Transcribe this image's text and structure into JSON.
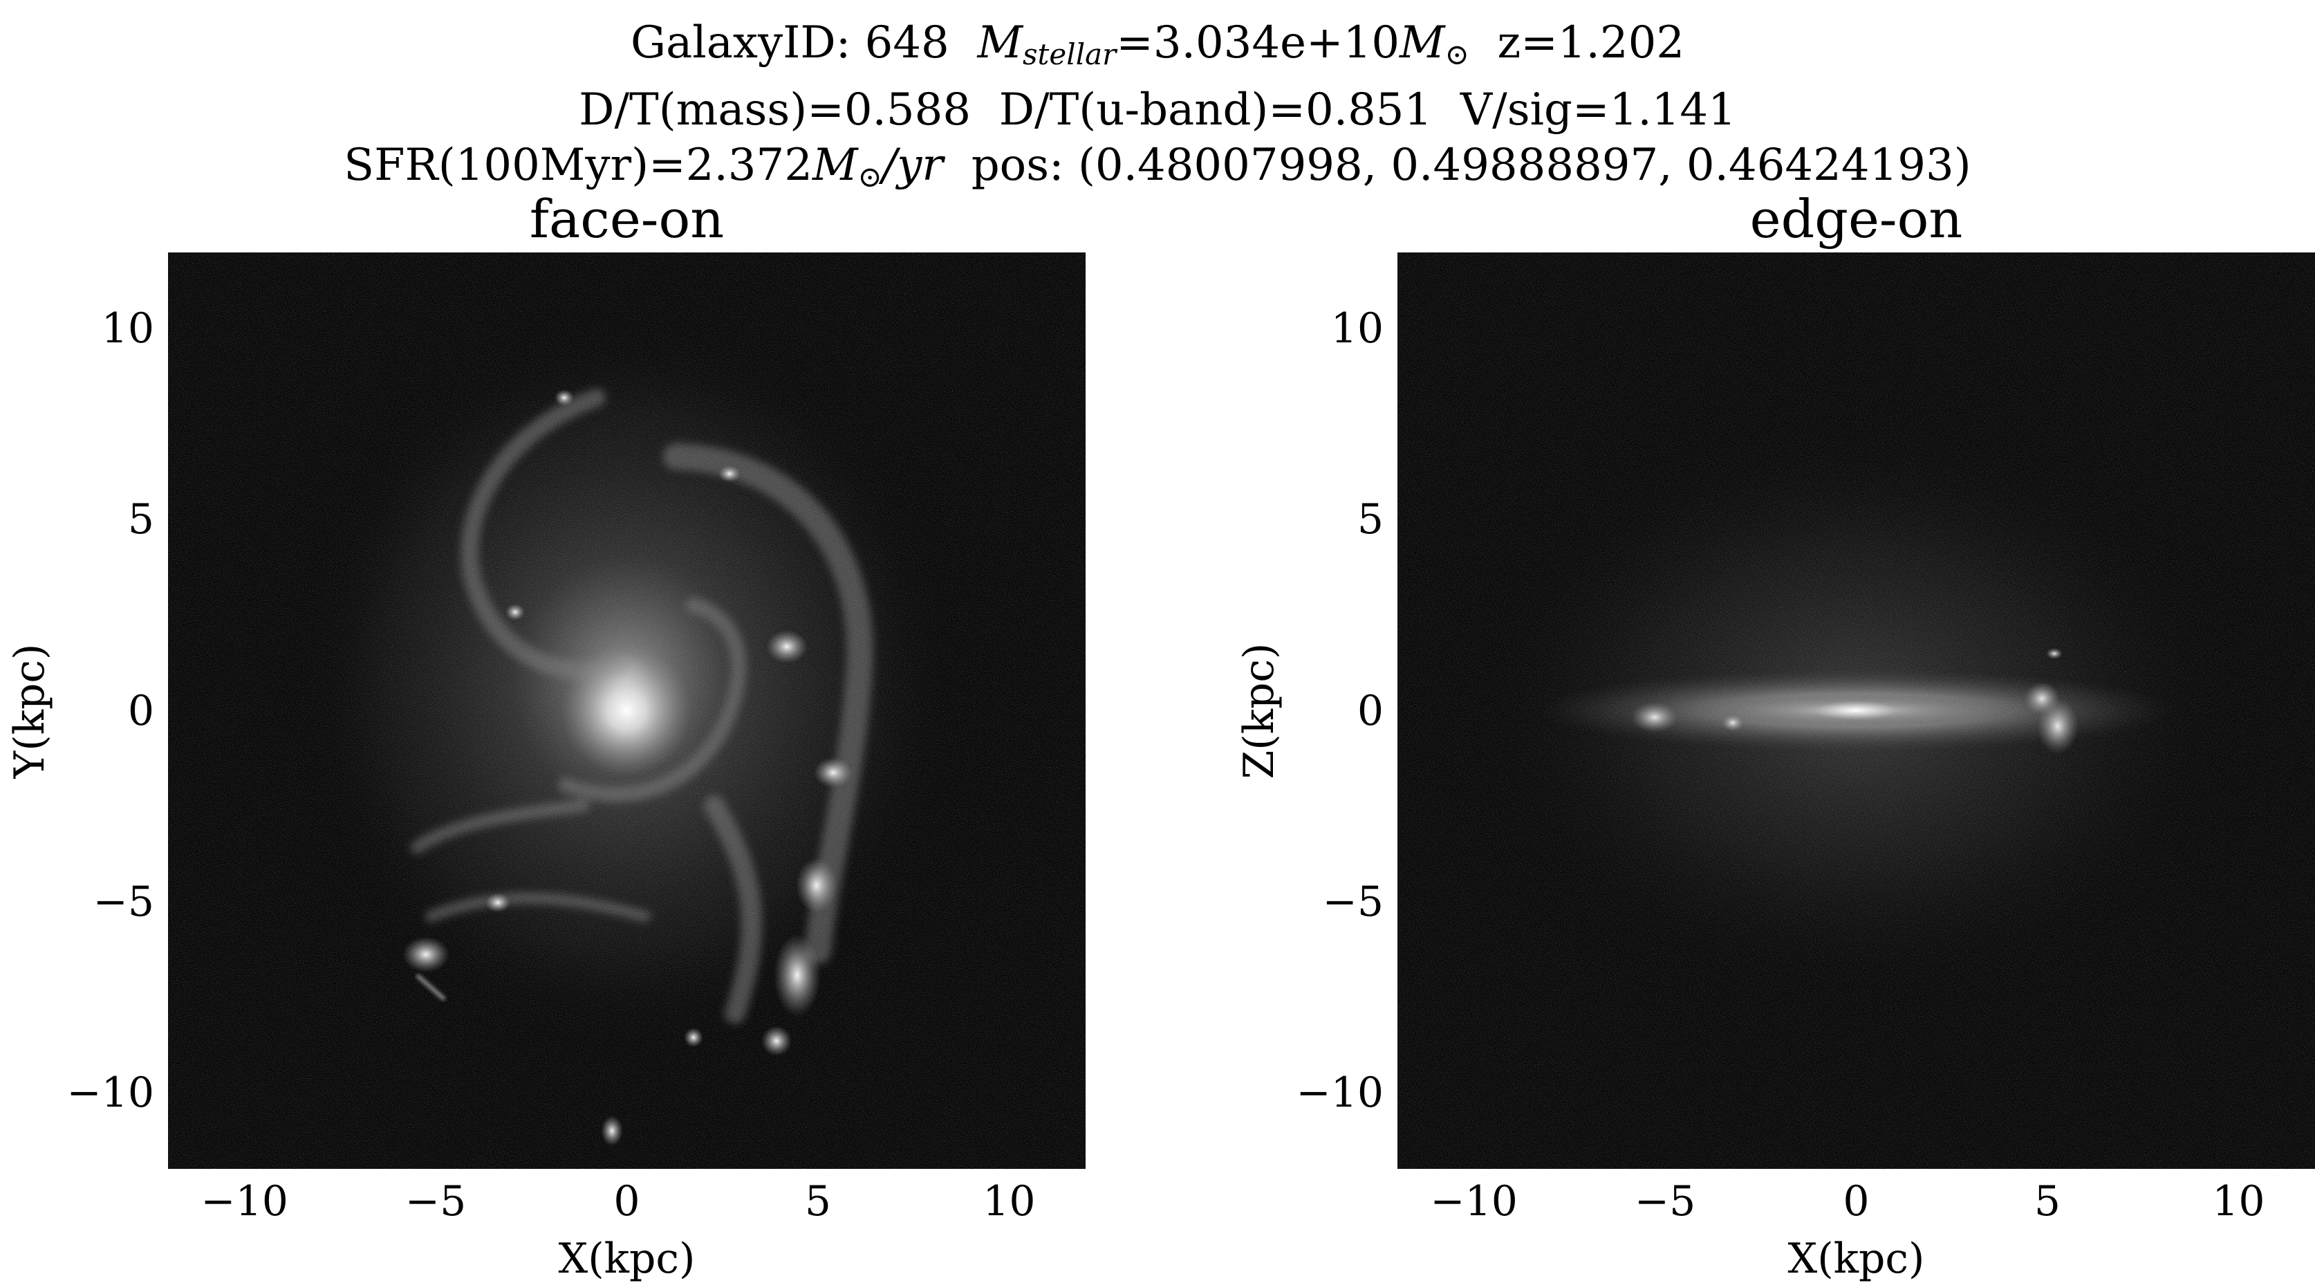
{
  "header": {
    "line1": {
      "galaxy_id": "GalaxyID: 648",
      "mstellar_symbol": "M",
      "mstellar_sub": "stellar",
      "mstellar_value": "=3.034e+10",
      "msun_symbol": "M",
      "msun_sub": "⊙",
      "redshift": "z=1.202"
    },
    "line2": {
      "dt_mass": "D/T(mass)=0.588",
      "dt_uband": "D/T(u-band)=0.851",
      "vsig": "V/sig=1.141"
    },
    "line3": {
      "sfr_prefix": "SFR(100Myr)=2.372",
      "sfr_unit_m": "M",
      "sfr_unit_sub": "⊙",
      "sfr_unit_rest": "/yr",
      "pos": "pos: (0.48007998, 0.49888897, 0.46424193)"
    }
  },
  "panels": [
    {
      "title": "face-on",
      "xlabel": "X(kpc)",
      "ylabel": "Y(kpc)",
      "xticks": [
        "−10",
        "−5",
        "0",
        "5",
        "10"
      ],
      "yticks": [
        "10",
        "5",
        "0",
        "−5",
        "−10"
      ]
    },
    {
      "title": "edge-on",
      "xlabel": "X(kpc)",
      "ylabel": "Z(kpc)",
      "xticks": [
        "−10",
        "−5",
        "0",
        "5",
        "10"
      ],
      "yticks": [
        "10",
        "5",
        "0",
        "−5",
        "−10"
      ]
    }
  ],
  "axes": {
    "xlim": [
      -12,
      12
    ],
    "ylim": [
      -12,
      12
    ],
    "tick_values": [
      -10,
      -5,
      0,
      5,
      10
    ]
  },
  "colors": {
    "background": "#070707",
    "glow": "#ffffff"
  }
}
